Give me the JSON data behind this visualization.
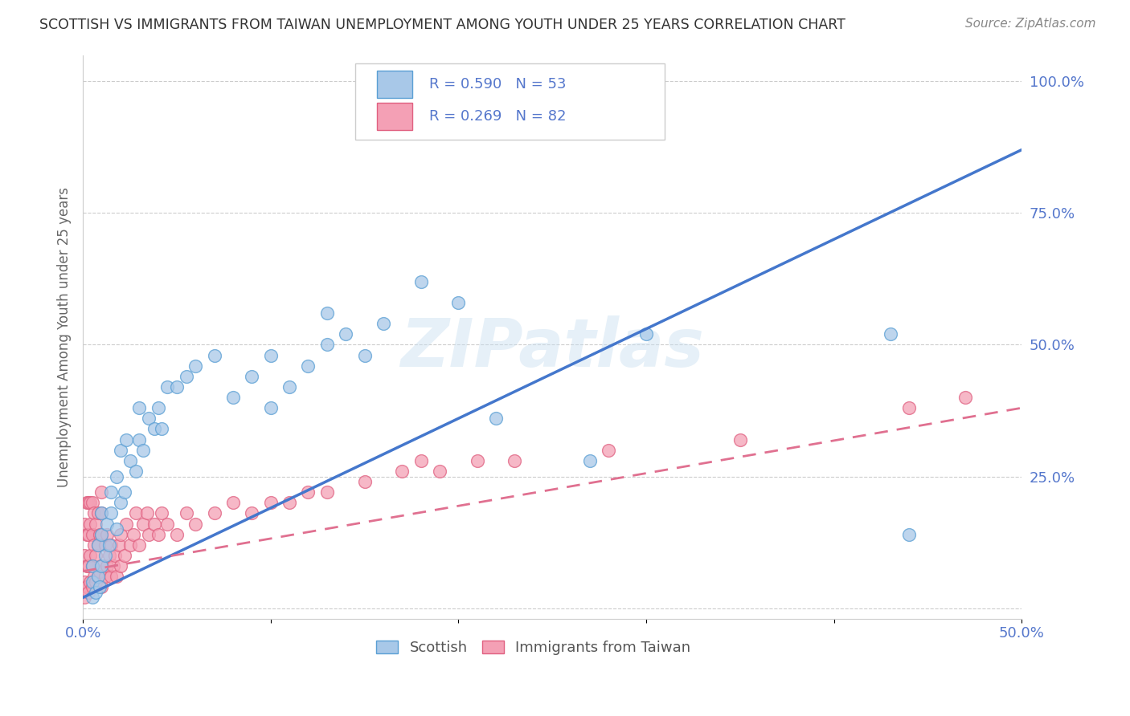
{
  "title": "SCOTTISH VS IMMIGRANTS FROM TAIWAN UNEMPLOYMENT AMONG YOUTH UNDER 25 YEARS CORRELATION CHART",
  "source": "Source: ZipAtlas.com",
  "ylabel": "Unemployment Among Youth under 25 years",
  "xlim": [
    0.0,
    0.5
  ],
  "ylim": [
    -0.02,
    1.05
  ],
  "blue_color": "#a8c8e8",
  "pink_color": "#f4a0b5",
  "blue_edge_color": "#5a9fd4",
  "pink_edge_color": "#e06080",
  "blue_line_color": "#4477cc",
  "pink_line_color": "#e07090",
  "grid_color": "#cccccc",
  "label_color": "#5577cc",
  "title_color": "#333333",
  "source_color": "#888888",
  "watermark": "ZIPatlas",
  "scottish_x": [
    0.005,
    0.005,
    0.005,
    0.007,
    0.008,
    0.008,
    0.009,
    0.01,
    0.01,
    0.01,
    0.012,
    0.013,
    0.014,
    0.015,
    0.015,
    0.018,
    0.018,
    0.02,
    0.02,
    0.022,
    0.023,
    0.025,
    0.028,
    0.03,
    0.03,
    0.032,
    0.035,
    0.038,
    0.04,
    0.042,
    0.045,
    0.05,
    0.055,
    0.06,
    0.07,
    0.08,
    0.09,
    0.1,
    0.1,
    0.11,
    0.12,
    0.13,
    0.13,
    0.14,
    0.15,
    0.16,
    0.18,
    0.2,
    0.22,
    0.27,
    0.3,
    0.43,
    0.44
  ],
  "scottish_y": [
    0.02,
    0.05,
    0.08,
    0.03,
    0.06,
    0.12,
    0.04,
    0.08,
    0.14,
    0.18,
    0.1,
    0.16,
    0.12,
    0.18,
    0.22,
    0.15,
    0.25,
    0.2,
    0.3,
    0.22,
    0.32,
    0.28,
    0.26,
    0.32,
    0.38,
    0.3,
    0.36,
    0.34,
    0.38,
    0.34,
    0.42,
    0.42,
    0.44,
    0.46,
    0.48,
    0.4,
    0.44,
    0.48,
    0.38,
    0.42,
    0.46,
    0.5,
    0.56,
    0.52,
    0.48,
    0.54,
    0.62,
    0.58,
    0.36,
    0.28,
    0.52,
    0.52,
    0.14
  ],
  "taiwan_x": [
    0.001,
    0.001,
    0.001,
    0.001,
    0.002,
    0.002,
    0.002,
    0.002,
    0.003,
    0.003,
    0.003,
    0.003,
    0.004,
    0.004,
    0.004,
    0.004,
    0.005,
    0.005,
    0.005,
    0.005,
    0.006,
    0.006,
    0.006,
    0.007,
    0.007,
    0.007,
    0.008,
    0.008,
    0.008,
    0.009,
    0.009,
    0.01,
    0.01,
    0.01,
    0.01,
    0.01,
    0.012,
    0.012,
    0.013,
    0.013,
    0.014,
    0.015,
    0.015,
    0.016,
    0.017,
    0.018,
    0.019,
    0.02,
    0.02,
    0.022,
    0.023,
    0.025,
    0.027,
    0.028,
    0.03,
    0.032,
    0.034,
    0.035,
    0.038,
    0.04,
    0.042,
    0.045,
    0.05,
    0.055,
    0.06,
    0.07,
    0.08,
    0.09,
    0.1,
    0.11,
    0.12,
    0.13,
    0.15,
    0.17,
    0.18,
    0.19,
    0.21,
    0.23,
    0.28,
    0.35,
    0.44,
    0.47
  ],
  "taiwan_y": [
    0.02,
    0.05,
    0.1,
    0.16,
    0.04,
    0.08,
    0.14,
    0.2,
    0.03,
    0.08,
    0.14,
    0.2,
    0.05,
    0.1,
    0.16,
    0.2,
    0.04,
    0.08,
    0.14,
    0.2,
    0.06,
    0.12,
    0.18,
    0.05,
    0.1,
    0.16,
    0.06,
    0.12,
    0.18,
    0.07,
    0.14,
    0.04,
    0.08,
    0.14,
    0.18,
    0.22,
    0.06,
    0.12,
    0.08,
    0.14,
    0.1,
    0.06,
    0.12,
    0.08,
    0.1,
    0.06,
    0.12,
    0.08,
    0.14,
    0.1,
    0.16,
    0.12,
    0.14,
    0.18,
    0.12,
    0.16,
    0.18,
    0.14,
    0.16,
    0.14,
    0.18,
    0.16,
    0.14,
    0.18,
    0.16,
    0.18,
    0.2,
    0.18,
    0.2,
    0.2,
    0.22,
    0.22,
    0.24,
    0.26,
    0.28,
    0.26,
    0.28,
    0.28,
    0.3,
    0.32,
    0.38,
    0.4
  ],
  "blue_line_x0": 0.0,
  "blue_line_y0": 0.02,
  "blue_line_x1": 0.5,
  "blue_line_y1": 0.87,
  "pink_line_x0": 0.0,
  "pink_line_y0": 0.07,
  "pink_line_x1": 0.5,
  "pink_line_y1": 0.38
}
